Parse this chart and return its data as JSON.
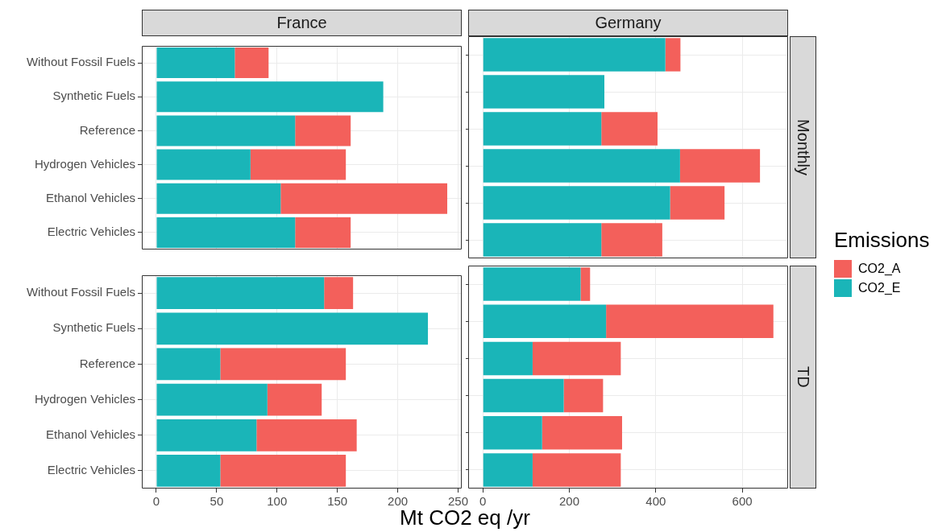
{
  "chart_data": [
    {
      "type": "bar",
      "orientation": "horizontal",
      "stacked": true,
      "title": "France",
      "categories": [
        "Without Fossil Fuels",
        "Synthetic Fuels",
        "Reference",
        "Hydrogen Vehicles",
        "Ethanol Vehicles",
        "Electric Vehicles"
      ],
      "series": [
        {
          "color": "#1ab5b8",
          "values": [
            65,
            188,
            115,
            78,
            103,
            115
          ]
        },
        {
          "color": "#f3605b",
          "values": [
            28,
            0,
            46,
            79,
            138,
            46
          ]
        }
      ],
      "xlim": [
        -12,
        253
      ],
      "xticks": [
        0,
        50,
        100,
        150,
        200,
        250
      ],
      "grid": true,
      "tick_labels": "y"
    },
    {
      "type": "bar",
      "orientation": "horizontal",
      "stacked": true,
      "title": "Germany",
      "y2label": "Monthly",
      "legend": "right",
      "legend_title": "Emissions",
      "categories": [
        null,
        null,
        null,
        null,
        null,
        null
      ],
      "series": [
        {
          "name": "CO2_E",
          "color": "#1ab5b8",
          "values": [
            422,
            281,
            274,
            456,
            433,
            274
          ]
        },
        {
          "name": "CO2_A",
          "color": "#f3605b",
          "values": [
            35,
            0,
            130,
            185,
            126,
            141
          ]
        }
      ],
      "xlim": [
        -34,
        706
      ],
      "xticks": [
        0,
        200,
        400,
        600
      ],
      "grid": true,
      "tick_labels": false
    },
    {
      "type": "bar",
      "orientation": "horizontal",
      "stacked": true,
      "xlabel": "Mt CO2 eq /yr",
      "categories": [
        "Without Fossil Fuels",
        "Synthetic Fuels",
        "Reference",
        "Hydrogen Vehicles",
        "Ethanol Vehicles",
        "Electric Vehicles"
      ],
      "series": [
        {
          "color": "#1ab5b8",
          "values": [
            139,
            225,
            53,
            92,
            83,
            53
          ]
        },
        {
          "color": "#f3605b",
          "values": [
            24,
            0,
            104,
            45,
            83,
            104
          ]
        }
      ],
      "xlim": [
        -12,
        253
      ],
      "xticks": [
        0,
        50,
        100,
        150,
        200,
        250
      ],
      "grid": true
    },
    {
      "type": "bar",
      "orientation": "horizontal",
      "stacked": true,
      "y2label": "TD",
      "categories": [
        null,
        null,
        null,
        null,
        null,
        null
      ],
      "series": [
        {
          "color": "#1ab5b8",
          "values": [
            226,
            285,
            115,
            187,
            137,
            115
          ]
        },
        {
          "color": "#f3605b",
          "values": [
            22,
            387,
            204,
            91,
            185,
            204
          ]
        }
      ],
      "xlim": [
        -34,
        706
      ],
      "xticks": [
        0,
        200,
        400,
        600
      ],
      "grid": true,
      "tick_labels": "x"
    }
  ]
}
